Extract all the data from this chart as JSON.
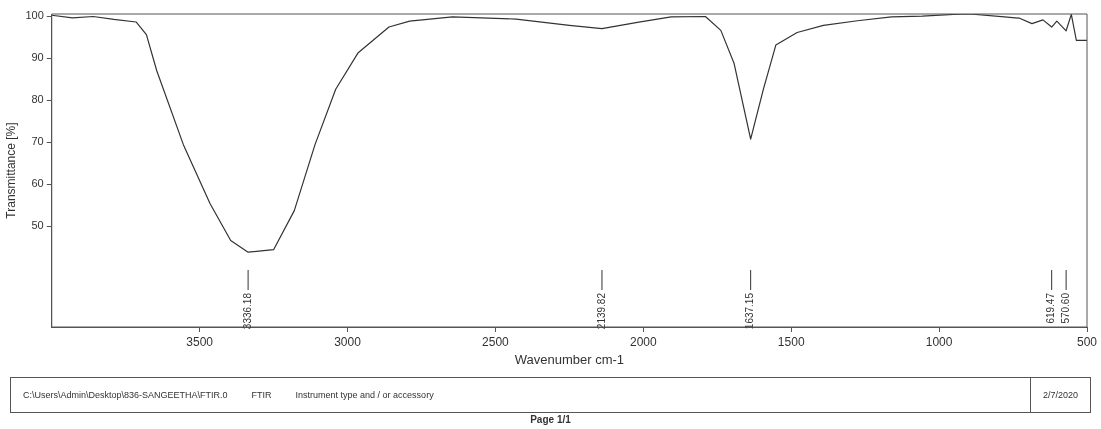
{
  "chart_data": {
    "type": "line",
    "xlabel": "Wavenumber cm-1",
    "ylabel": "Transmittance [%]",
    "xlim": [
      4000,
      500
    ],
    "xticks": [
      3500,
      3000,
      2500,
      2000,
      1500,
      1000,
      500
    ],
    "ylim": [
      26,
      100.5
    ],
    "yticks": [
      50,
      60,
      70,
      80,
      90,
      100
    ],
    "grid": false,
    "legend": false,
    "marker": "none",
    "line_style": "solid",
    "series": [
      {
        "color": "#333333",
        "x": [
          4000,
          3930,
          3860,
          3790,
          3715,
          3680,
          3645,
          3555,
          3465,
          3395,
          3336.18,
          3250,
          3180,
          3110,
          3040,
          2965,
          2860,
          2790,
          2645,
          2430,
          2250,
          2139.82,
          2020,
          1906,
          1790,
          1738,
          1693,
          1637.15,
          1594,
          1552,
          1480,
          1391,
          1276,
          1161,
          1057,
          951,
          896,
          779,
          728,
          686,
          649,
          619.47,
          602,
          570.6,
          553,
          536,
          500
        ],
        "values": [
          100.2,
          99.6,
          99.9,
          99.2,
          98.6,
          95.6,
          87,
          69.4,
          55.4,
          46.6,
          43.8,
          44.4,
          53.7,
          69.4,
          82.6,
          91.2,
          97.4,
          98.8,
          99.8,
          99.3,
          97.8,
          97,
          98.5,
          99.8,
          99.9,
          96.6,
          88.7,
          70.7,
          82.6,
          93.1,
          96.1,
          97.8,
          98.9,
          99.8,
          100,
          100.4,
          100.5,
          99.8,
          99.5,
          98.2,
          99.1,
          97.4,
          98.8,
          96.5,
          100.4,
          94.2,
          94.2
        ]
      }
    ],
    "annotations": [
      {
        "text": "3336.18",
        "x": 3336.18
      },
      {
        "text": "2139.82",
        "x": 2139.82
      },
      {
        "text": "1637.15",
        "x": 1637.15
      },
      {
        "text": "619.47",
        "x": 619.47
      },
      {
        "text": "570.60",
        "x": 570.6
      },
      "C:\\Users\\Admin\\Desktop\\836-SANGEETHA\\FTIR.0",
      "FTIR",
      "Instrument type and / or accessory",
      "2/7/2020",
      "Page 1/1"
    ]
  }
}
